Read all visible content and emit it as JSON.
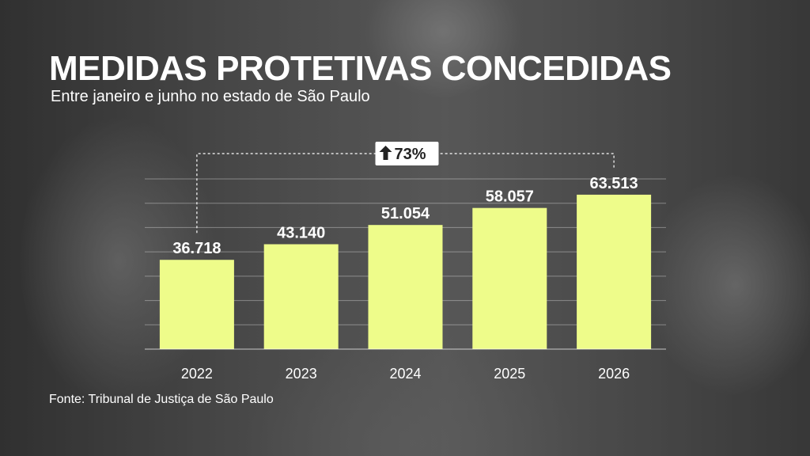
{
  "title": "MEDIDAS PROTETIVAS CONCEDIDAS",
  "subtitle": "Entre janeiro e junho no estado de São Paulo",
  "source": "Fonte: Tribunal de Justiça de São Paulo",
  "colors": {
    "bar": "#eefc8a",
    "text": "#ffffff",
    "badge_bg": "#ffffff",
    "badge_text": "#222222"
  },
  "chart_data": {
    "type": "bar",
    "categories": [
      "2022",
      "2023",
      "2024",
      "2025",
      "2026"
    ],
    "values": [
      36718,
      43140,
      51054,
      58057,
      63513
    ],
    "value_labels": [
      "36.718",
      "43.140",
      "51.054",
      "58.057",
      "63.513"
    ],
    "title": "MEDIDAS PROTETIVAS CONCEDIDAS",
    "subtitle": "Entre janeiro e junho no estado de São Paulo",
    "xlabel": "",
    "ylabel": "",
    "ylim": [
      0,
      70000
    ],
    "grid": true,
    "annotation": {
      "text": "73%",
      "icon": "arrow-up-icon",
      "from": "2022",
      "to": "2026"
    }
  }
}
